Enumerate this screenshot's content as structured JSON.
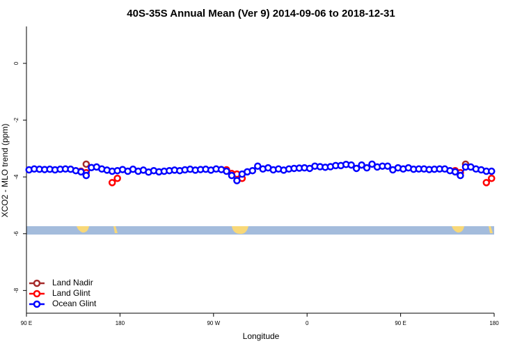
{
  "chart_data": {
    "type": "line",
    "title": "40S-35S Annual Mean (Ver 9)   2014-09-06 to 2018-12-31",
    "x_label": "Longitude",
    "y_label": "XCO2 - MLO trend (ppm)",
    "xlim": [
      90,
      540
    ],
    "xticks": [
      {
        "value": 90,
        "label": "90 E"
      },
      180,
      {
        "value": 270,
        "label": "90 W"
      },
      {
        "value": 360,
        "label": "0"
      },
      {
        "value": 450,
        "label": "90 E"
      },
      {
        "value": 540,
        "label": "180"
      }
    ],
    "ylim": [
      -8.8,
      1.3
    ],
    "yticks": [
      0,
      -2,
      -4,
      -6,
      -8
    ],
    "legend": "bottom-left",
    "series": [
      {
        "name": "Land Nadir",
        "color": "#a52a2a",
        "x": [
          147.5,
          512.5
        ],
        "values": [
          -3.55,
          -3.55
        ]
      },
      {
        "name": "Land Glint",
        "color": "#ff0000",
        "x": [
          142.5,
          147.5,
          172.5,
          177.5,
          282.5,
          287.5,
          292.5,
          297.5,
          502.5,
          507.5,
          532.5,
          537.5
        ],
        "values": [
          -3.8,
          -3.85,
          -4.2,
          -4.05,
          -3.75,
          -3.88,
          -3.9,
          -4.05,
          -3.78,
          -3.85,
          -4.2,
          -4.05
        ]
      },
      {
        "name": "Ocean Glint",
        "color": "#0000ff",
        "x": [
          92.5,
          97.5,
          102.5,
          107.5,
          112.5,
          117.5,
          122.5,
          127.5,
          132.5,
          137.5,
          142.5,
          147.5,
          152.5,
          157.5,
          162.5,
          167.5,
          172.5,
          177.5,
          182.5,
          187.5,
          192.5,
          197.5,
          202.5,
          207.5,
          212.5,
          217.5,
          222.5,
          227.5,
          232.5,
          237.5,
          242.5,
          247.5,
          252.5,
          257.5,
          262.5,
          267.5,
          272.5,
          277.5,
          282.5,
          287.5,
          292.5,
          297.5,
          302.5,
          307.5,
          312.5,
          317.5,
          322.5,
          327.5,
          332.5,
          337.5,
          342.5,
          347.5,
          352.5,
          357.5,
          362.5,
          367.5,
          372.5,
          377.5,
          382.5,
          387.5,
          392.5,
          397.5,
          402.5,
          407.5,
          412.5,
          417.5,
          422.5,
          427.5,
          432.5,
          437.5,
          442.5,
          447.5,
          452.5,
          457.5,
          462.5,
          467.5,
          472.5,
          477.5,
          482.5,
          487.5,
          492.5,
          497.5,
          502.5,
          507.5,
          512.5,
          517.5,
          522.5,
          527.5,
          532.5,
          537.5
        ],
        "values": [
          -3.75,
          -3.72,
          -3.73,
          -3.74,
          -3.73,
          -3.75,
          -3.73,
          -3.72,
          -3.73,
          -3.78,
          -3.82,
          -3.95,
          -3.67,
          -3.65,
          -3.72,
          -3.76,
          -3.8,
          -3.78,
          -3.74,
          -3.8,
          -3.73,
          -3.8,
          -3.76,
          -3.83,
          -3.78,
          -3.82,
          -3.8,
          -3.78,
          -3.76,
          -3.78,
          -3.75,
          -3.73,
          -3.76,
          -3.74,
          -3.73,
          -3.76,
          -3.72,
          -3.74,
          -3.8,
          -3.95,
          -4.13,
          -3.9,
          -3.82,
          -3.78,
          -3.62,
          -3.72,
          -3.68,
          -3.75,
          -3.72,
          -3.76,
          -3.72,
          -3.7,
          -3.69,
          -3.68,
          -3.7,
          -3.62,
          -3.64,
          -3.66,
          -3.64,
          -3.6,
          -3.6,
          -3.56,
          -3.58,
          -3.7,
          -3.58,
          -3.68,
          -3.55,
          -3.65,
          -3.62,
          -3.62,
          -3.75,
          -3.68,
          -3.72,
          -3.68,
          -3.73,
          -3.72,
          -3.72,
          -3.74,
          -3.73,
          -3.72,
          -3.72,
          -3.78,
          -3.82,
          -3.95,
          -3.65,
          -3.65,
          -3.72,
          -3.75,
          -3.8,
          -3.8
        ]
      }
    ]
  }
}
